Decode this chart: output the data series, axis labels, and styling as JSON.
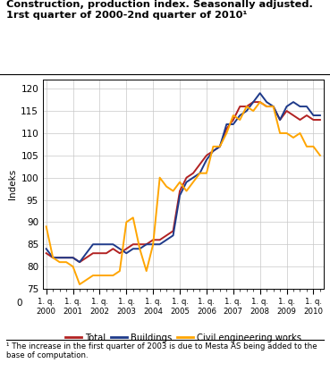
{
  "title_line1": "Construction, production index. Seasonally adjusted.",
  "title_line2": "1rst quarter of 2000-2nd quarter of 2010¹",
  "ylabel": "Indeks",
  "footnote": "¹ The increase in the first quarter of 2003 is due to Mesta AS being added to the base of computation.",
  "legend": [
    "Total",
    "Buildings",
    "Civil engineering works"
  ],
  "colors": {
    "total": "#b22222",
    "buildings": "#1e3a8a",
    "civil": "#ffa500"
  },
  "total": [
    83,
    82,
    82,
    82,
    82,
    81,
    82,
    83,
    83,
    83,
    84,
    83,
    84,
    85,
    85,
    85,
    86,
    86,
    87,
    88,
    97,
    100,
    101,
    103,
    105,
    106,
    107,
    111,
    113,
    116,
    116,
    117,
    117,
    116,
    116,
    113,
    115,
    114,
    113,
    114,
    113,
    113
  ],
  "buildings": [
    84,
    82,
    82,
    82,
    82,
    81,
    83,
    85,
    85,
    85,
    85,
    84,
    83,
    84,
    84,
    85,
    85,
    85,
    86,
    87,
    96,
    99,
    100,
    101,
    104,
    106,
    107,
    112,
    112,
    114,
    115,
    117,
    119,
    117,
    116,
    113,
    116,
    117,
    116,
    116,
    114,
    114
  ],
  "civil": [
    89,
    82,
    81,
    81,
    80,
    76,
    77,
    78,
    78,
    78,
    78,
    79,
    90,
    91,
    84,
    79,
    85,
    100,
    98,
    97,
    99,
    97,
    99,
    101,
    101,
    107,
    107,
    110,
    114,
    113,
    116,
    115,
    117,
    116,
    116,
    110,
    110,
    109,
    110,
    107,
    107,
    105
  ]
}
